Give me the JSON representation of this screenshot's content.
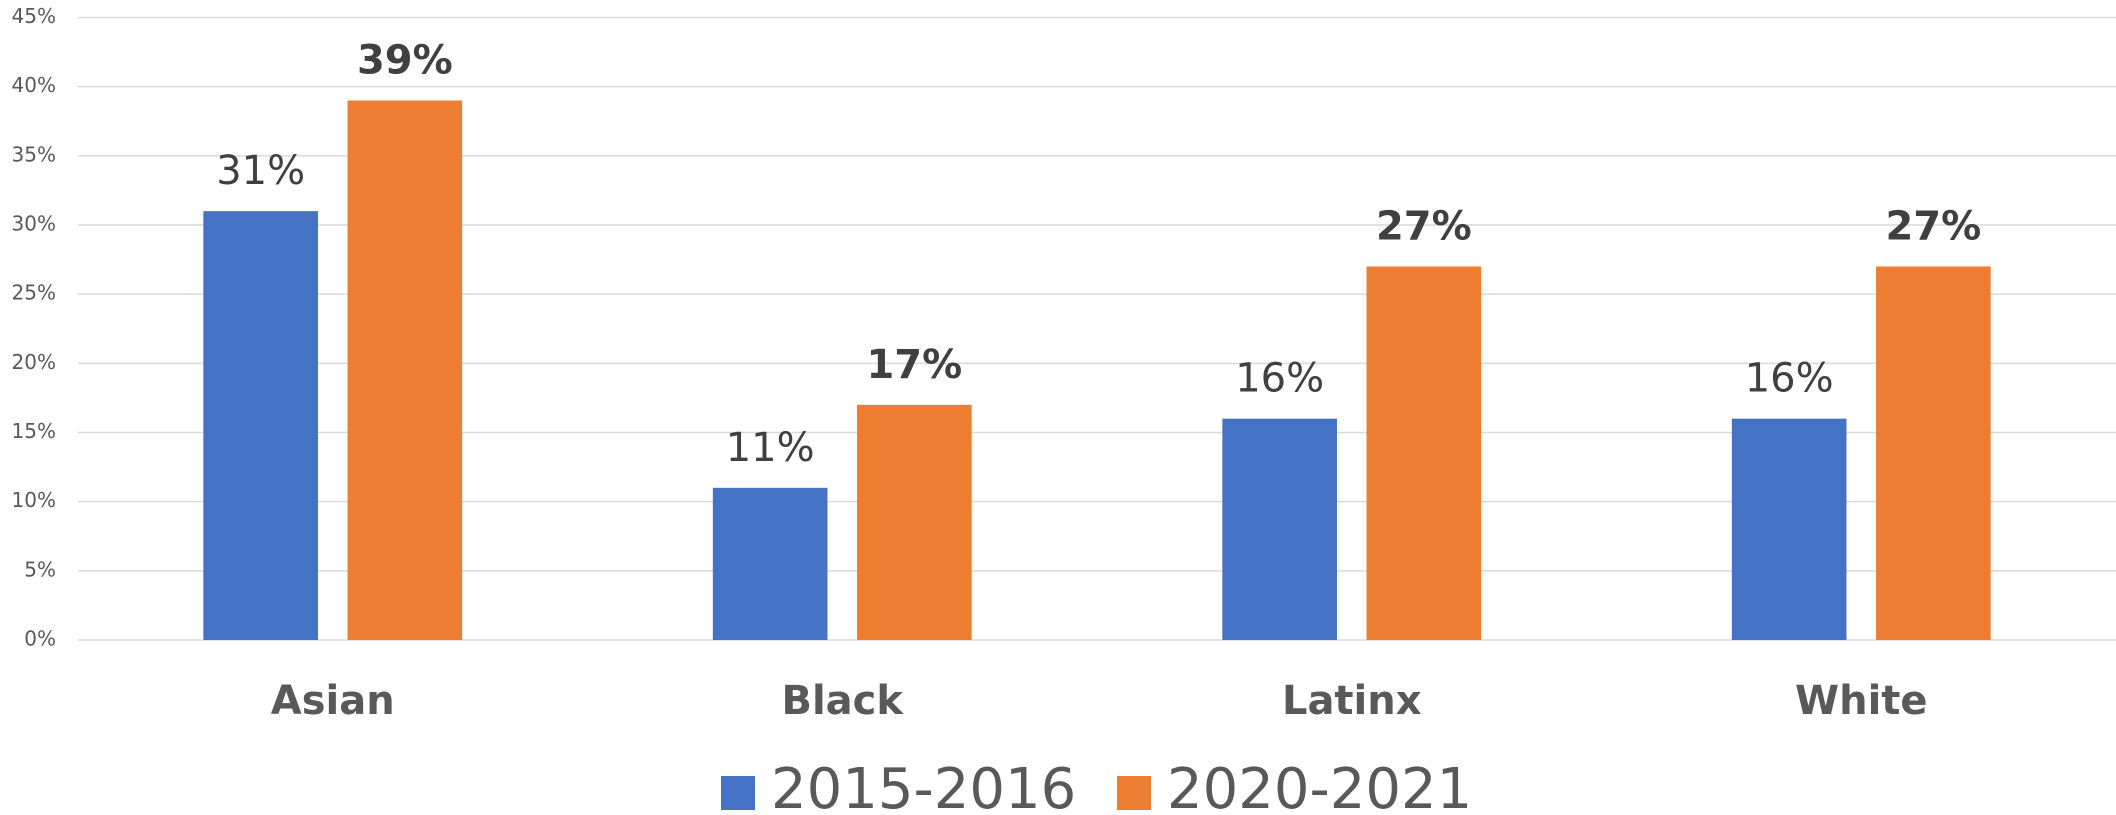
{
  "chart_data": {
    "type": "bar",
    "categories": [
      "Asian",
      "Black",
      "Latinx",
      "White"
    ],
    "series": [
      {
        "name": "2015-2016",
        "color": "#4472c4",
        "values": [
          31,
          11,
          16,
          16
        ],
        "value_labels": [
          "31%",
          "11%",
          "16%",
          "16%"
        ]
      },
      {
        "name": "2020-2021",
        "color": "#ed7d31",
        "values": [
          39,
          17,
          27,
          27
        ],
        "value_labels": [
          "39%",
          "17%",
          "27%",
          "27%"
        ]
      }
    ],
    "ylim": [
      0,
      45
    ],
    "yticks": [
      {
        "value": 0,
        "label": "0%"
      },
      {
        "value": 5,
        "label": "5%"
      },
      {
        "value": 10,
        "label": "10%"
      },
      {
        "value": 15,
        "label": "15%"
      },
      {
        "value": 20,
        "label": "20%"
      },
      {
        "value": 25,
        "label": "25%"
      },
      {
        "value": 30,
        "label": "30%"
      },
      {
        "value": 35,
        "label": "35%"
      },
      {
        "value": 40,
        "label": "40%"
      },
      {
        "value": 45,
        "label": "45%"
      }
    ],
    "grid": true,
    "legend": "bottom"
  }
}
